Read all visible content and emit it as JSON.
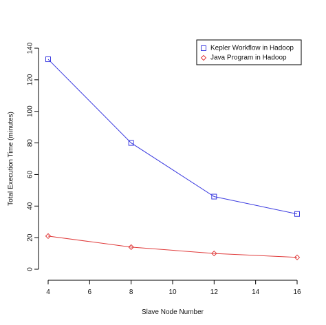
{
  "chart_data": {
    "type": "line",
    "title": "",
    "xlabel": "Slave Node Number",
    "ylabel": "Total Execution Time (minutes)",
    "x": [
      4,
      8,
      12,
      16
    ],
    "xlim": [
      4,
      16
    ],
    "ylim": [
      0,
      140
    ],
    "x_ticks": [
      4,
      6,
      8,
      10,
      12,
      14,
      16
    ],
    "y_ticks": [
      0,
      20,
      40,
      60,
      80,
      100,
      120,
      140
    ],
    "grid": false,
    "legend_position": "top-right",
    "series": [
      {
        "name": "Kepler Workflow in Hadoop",
        "values": [
          133,
          80,
          46,
          35
        ],
        "color": "#3a3ae0",
        "marker": "square"
      },
      {
        "name": "Java Program in Hadoop",
        "values": [
          21,
          14,
          10,
          7.5
        ],
        "color": "#e03a3a",
        "marker": "diamond"
      }
    ]
  }
}
